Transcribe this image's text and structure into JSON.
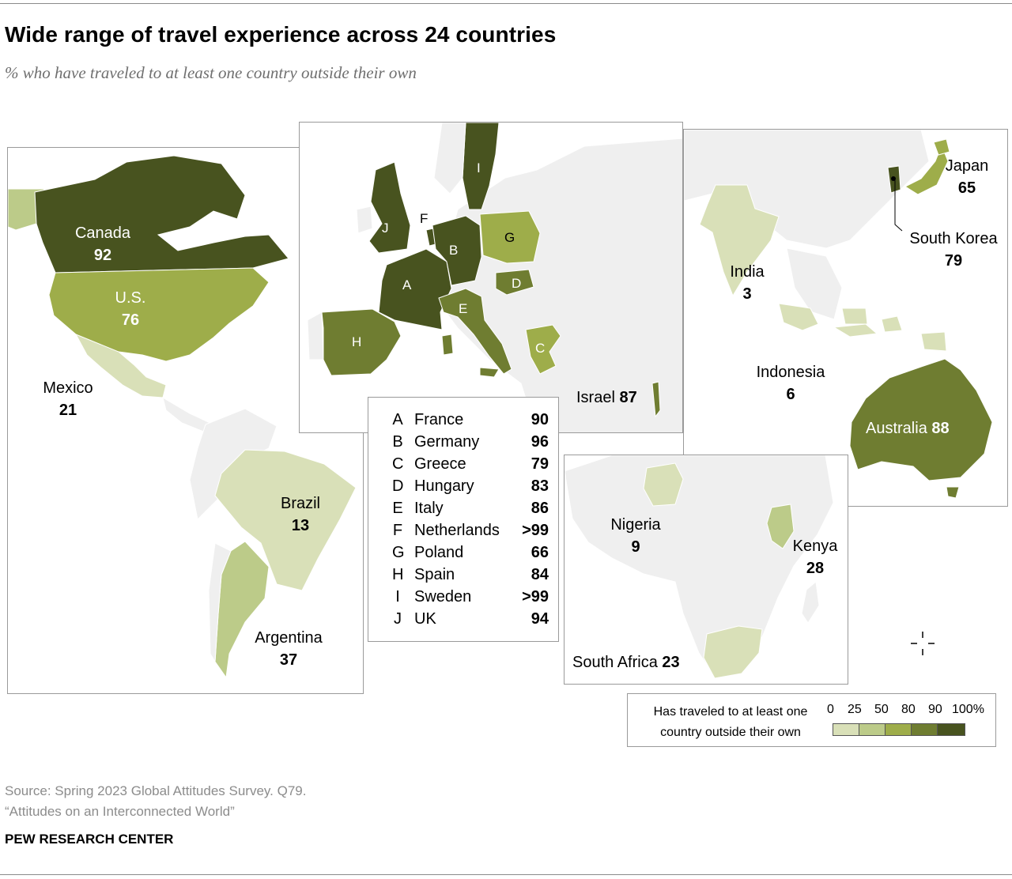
{
  "title": "Wide range of travel experience across 24 countries",
  "subtitle": "% who have traveled to at least one country outside their own",
  "colors": {
    "ocean": "#ffffff",
    "land_no_data": "#efefef",
    "border": "#ffffff",
    "bin_0_25": "#d9e0b8",
    "bin_25_50": "#bccb89",
    "bin_50_80": "#9ead4a",
    "bin_80_90": "#6f7d31",
    "bin_90_100": "#48531f"
  },
  "countries": {
    "canada": {
      "name": "Canada",
      "value": "92"
    },
    "us": {
      "name": "U.S.",
      "value": "76"
    },
    "mexico": {
      "name": "Mexico",
      "value": "21"
    },
    "brazil": {
      "name": "Brazil",
      "value": "13"
    },
    "argentina": {
      "name": "Argentina",
      "value": "37"
    },
    "israel": {
      "name": "Israel",
      "value": "87"
    },
    "japan": {
      "name": "Japan",
      "value": "65"
    },
    "south_korea": {
      "name": "South Korea",
      "value": "79"
    },
    "india": {
      "name": "India",
      "value": "3"
    },
    "indonesia": {
      "name": "Indonesia",
      "value": "6"
    },
    "australia": {
      "name": "Australia",
      "value": "88"
    },
    "nigeria": {
      "name": "Nigeria",
      "value": "9"
    },
    "kenya": {
      "name": "Kenya",
      "value": "28"
    },
    "south_africa": {
      "name": "South Africa",
      "value": "23"
    }
  },
  "europe_key": [
    {
      "letter": "A",
      "name": "France",
      "value": "90"
    },
    {
      "letter": "B",
      "name": "Germany",
      "value": "96"
    },
    {
      "letter": "C",
      "name": "Greece",
      "value": "79"
    },
    {
      "letter": "D",
      "name": "Hungary",
      "value": "83"
    },
    {
      "letter": "E",
      "name": "Italy",
      "value": "86"
    },
    {
      "letter": "F",
      "name": "Netherlands",
      "value": ">99"
    },
    {
      "letter": "G",
      "name": "Poland",
      "value": "66"
    },
    {
      "letter": "H",
      "name": "Spain",
      "value": "84"
    },
    {
      "letter": "I",
      "name": "Sweden",
      "value": ">99"
    },
    {
      "letter": "J",
      "name": "UK",
      "value": "94"
    }
  ],
  "legend": {
    "label": "Has traveled to at least one country outside their own",
    "ticks": [
      "0",
      "25",
      "50",
      "80",
      "90",
      "100%"
    ]
  },
  "source": "Source: Spring 2023 Global Attitudes Survey. Q79.",
  "report": "“Attitudes on an Interconnected World”",
  "brand": "PEW RESEARCH CENTER"
}
